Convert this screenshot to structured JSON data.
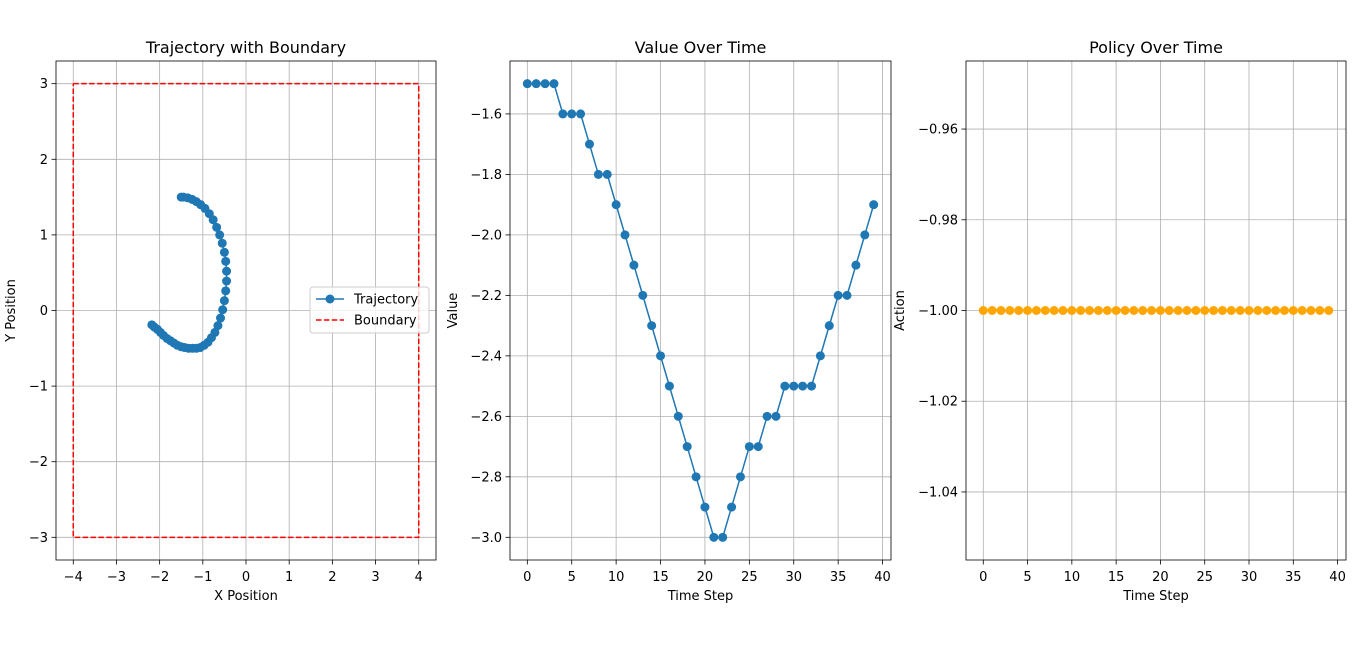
{
  "chart_data": [
    {
      "type": "line",
      "title": "Trajectory with Boundary",
      "xlabel": "X Position",
      "ylabel": "Y Position",
      "xlim": [
        -4.4,
        4.4
      ],
      "ylim": [
        -3.3,
        3.3
      ],
      "xticks": [
        -4,
        -3,
        -2,
        -1,
        0,
        1,
        2,
        3,
        4
      ],
      "xtick_labels": [
        "−4",
        "−3",
        "−2",
        "−1",
        "0",
        "1",
        "2",
        "3",
        "4"
      ],
      "yticks": [
        -3,
        -2,
        -1,
        0,
        1,
        2,
        3
      ],
      "ytick_labels": [
        "−3",
        "−2",
        "−1",
        "0",
        "1",
        "2",
        "3"
      ],
      "grid": true,
      "legend": {
        "location": "center-right",
        "entries": [
          "Trajectory",
          "Boundary"
        ]
      },
      "series": [
        {
          "name": "Trajectory",
          "color": "#1f77b4",
          "marker": "circle",
          "style": "solid",
          "x": [
            -1.5,
            -1.45,
            -1.35,
            -1.25,
            -1.15,
            -1.05,
            -0.95,
            -0.85,
            -0.76,
            -0.68,
            -0.61,
            -0.55,
            -0.5,
            -0.47,
            -0.45,
            -0.45,
            -0.47,
            -0.5,
            -0.54,
            -0.59,
            -0.65,
            -0.72,
            -0.8,
            -0.88,
            -0.97,
            -1.06,
            -1.15,
            -1.24,
            -1.33,
            -1.42,
            -1.5,
            -1.59,
            -1.67,
            -1.75,
            -1.83,
            -1.91,
            -1.98,
            -2.05,
            -2.12,
            -2.18
          ],
          "y": [
            1.5,
            1.5,
            1.49,
            1.47,
            1.44,
            1.4,
            1.35,
            1.28,
            1.2,
            1.1,
            1.0,
            0.89,
            0.77,
            0.65,
            0.52,
            0.39,
            0.26,
            0.13,
            0.01,
            -0.1,
            -0.2,
            -0.29,
            -0.36,
            -0.42,
            -0.46,
            -0.49,
            -0.5,
            -0.5,
            -0.5,
            -0.49,
            -0.48,
            -0.46,
            -0.43,
            -0.4,
            -0.37,
            -0.33,
            -0.29,
            -0.25,
            -0.22,
            -0.19
          ]
        },
        {
          "name": "Boundary",
          "color": "#ff0000",
          "marker": "none",
          "style": "dashed",
          "x": [
            -4,
            4,
            4,
            -4,
            -4
          ],
          "y": [
            3,
            3,
            -3,
            -3,
            3
          ]
        }
      ]
    },
    {
      "type": "line",
      "title": "Value Over Time",
      "xlabel": "Time Step",
      "ylabel": "Value",
      "xlim": [
        -1.95,
        40.95
      ],
      "ylim": [
        -3.075,
        -1.425
      ],
      "xticks": [
        0,
        5,
        10,
        15,
        20,
        25,
        30,
        35,
        40
      ],
      "xtick_labels": [
        "0",
        "5",
        "10",
        "15",
        "20",
        "25",
        "30",
        "35",
        "40"
      ],
      "yticks": [
        -3.0,
        -2.8,
        -2.6,
        -2.4,
        -2.2,
        -2.0,
        -1.8,
        -1.6
      ],
      "ytick_labels": [
        "−3.0",
        "−2.8",
        "−2.6",
        "−2.4",
        "−2.2",
        "−2.0",
        "−1.8",
        "−1.6"
      ],
      "grid": true,
      "series": [
        {
          "color": "#1f77b4",
          "marker": "circle",
          "style": "solid",
          "x": [
            0,
            1,
            2,
            3,
            4,
            5,
            6,
            7,
            8,
            9,
            10,
            11,
            12,
            13,
            14,
            15,
            16,
            17,
            18,
            19,
            20,
            21,
            22,
            23,
            24,
            25,
            26,
            27,
            28,
            29,
            30,
            31,
            32,
            33,
            34,
            35,
            36,
            37,
            38,
            39
          ],
          "y": [
            -1.5,
            -1.5,
            -1.5,
            -1.5,
            -1.6,
            -1.6,
            -1.6,
            -1.7,
            -1.8,
            -1.8,
            -1.9,
            -2.0,
            -2.1,
            -2.2,
            -2.3,
            -2.4,
            -2.5,
            -2.6,
            -2.7,
            -2.8,
            -2.9,
            -3.0,
            -3.0,
            -2.9,
            -2.8,
            -2.7,
            -2.7,
            -2.6,
            -2.6,
            -2.5,
            -2.5,
            -2.5,
            -2.5,
            -2.4,
            -2.3,
            -2.2,
            -2.2,
            -2.1,
            -2.0,
            -1.9
          ]
        }
      ]
    },
    {
      "type": "scatter",
      "title": "Policy Over Time",
      "xlabel": "Time Step",
      "ylabel": "Action",
      "xlim": [
        -1.95,
        40.95
      ],
      "ylim": [
        -1.055,
        -0.945
      ],
      "xticks": [
        0,
        5,
        10,
        15,
        20,
        25,
        30,
        35,
        40
      ],
      "xtick_labels": [
        "0",
        "5",
        "10",
        "15",
        "20",
        "25",
        "30",
        "35",
        "40"
      ],
      "yticks": [
        -1.04,
        -1.02,
        -1.0,
        -0.98,
        -0.96
      ],
      "ytick_labels": [
        "−1.04",
        "−1.02",
        "−1.00",
        "−0.98",
        "−0.96"
      ],
      "grid": true,
      "series": [
        {
          "color": "#ffa500",
          "marker": "circle",
          "style": "none",
          "x": [
            0,
            1,
            2,
            3,
            4,
            5,
            6,
            7,
            8,
            9,
            10,
            11,
            12,
            13,
            14,
            15,
            16,
            17,
            18,
            19,
            20,
            21,
            22,
            23,
            24,
            25,
            26,
            27,
            28,
            29,
            30,
            31,
            32,
            33,
            34,
            35,
            36,
            37,
            38,
            39
          ],
          "y": [
            -1,
            -1,
            -1,
            -1,
            -1,
            -1,
            -1,
            -1,
            -1,
            -1,
            -1,
            -1,
            -1,
            -1,
            -1,
            -1,
            -1,
            -1,
            -1,
            -1,
            -1,
            -1,
            -1,
            -1,
            -1,
            -1,
            -1,
            -1,
            -1,
            -1,
            -1,
            -1,
            -1,
            -1,
            -1,
            -1,
            -1,
            -1,
            -1,
            -1
          ]
        }
      ]
    }
  ]
}
